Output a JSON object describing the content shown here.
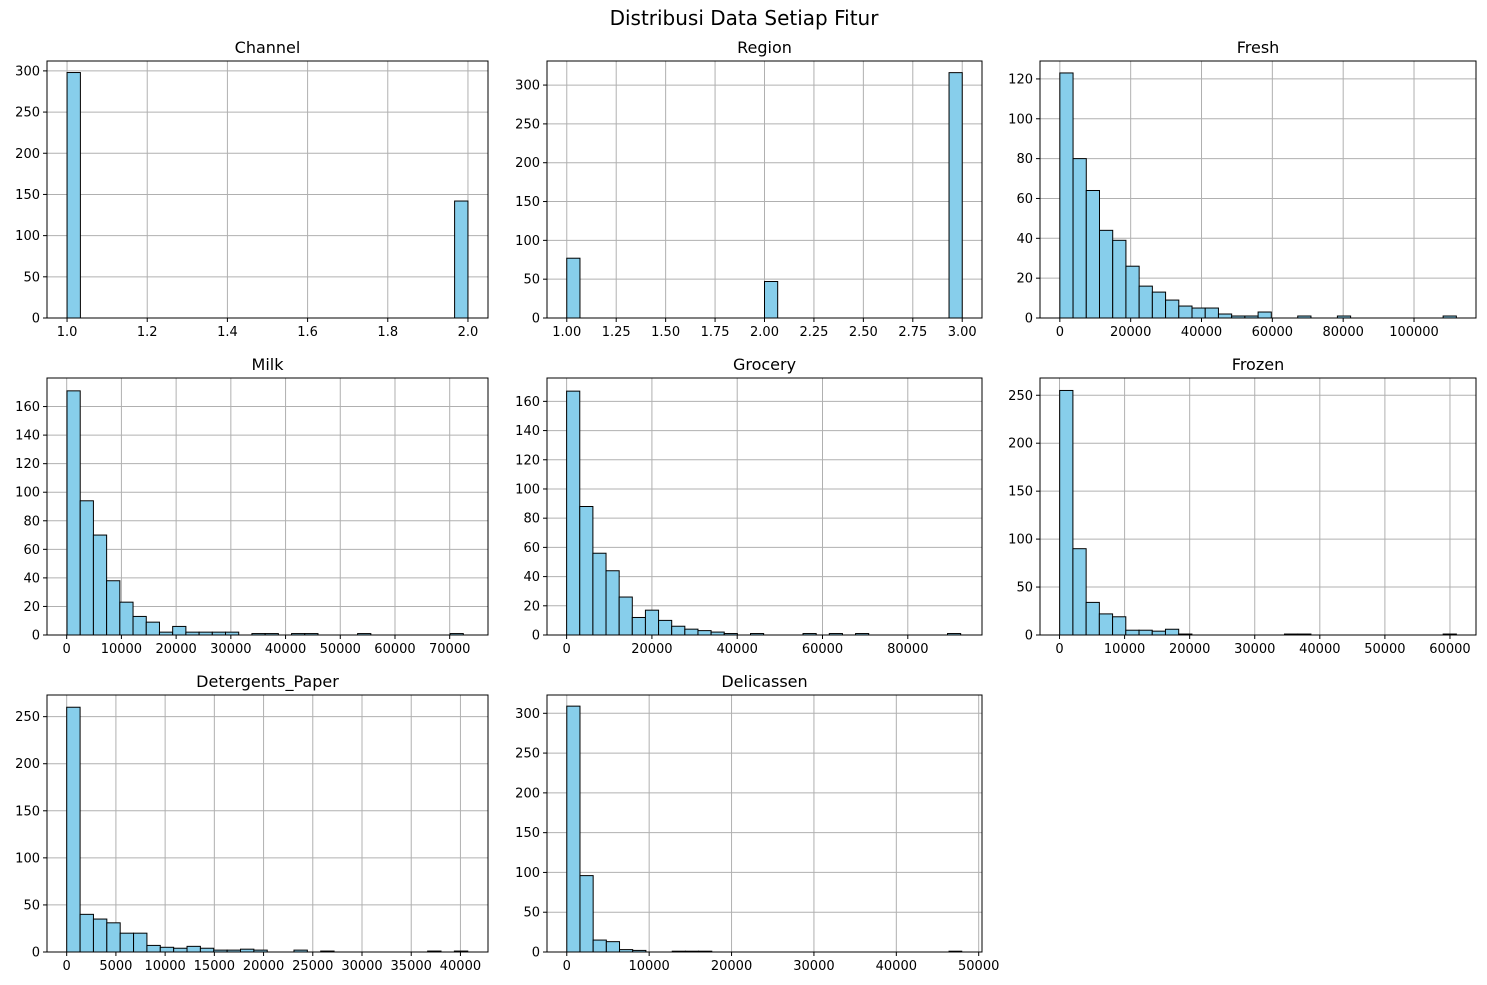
{
  "title": "Distribusi Data Setiap Fitur",
  "colors": {
    "bar_fill": "#87CEEB",
    "bar_edge": "#000000",
    "grid": "#b0b0b0",
    "axes": "#000000"
  },
  "chart_data": [
    {
      "type": "bar",
      "title": "Channel",
      "grid": true,
      "xlim": [
        0.95,
        2.05
      ],
      "ylim": [
        0,
        312
      ],
      "xticks": [
        1.0,
        1.2,
        1.4,
        1.6,
        1.8,
        2.0
      ],
      "xtick_labels": [
        "1.0",
        "1.2",
        "1.4",
        "1.6",
        "1.8",
        "2.0"
      ],
      "yticks": [
        0,
        50,
        100,
        150,
        200,
        250,
        300
      ],
      "ytick_labels": [
        "0",
        "50",
        "100",
        "150",
        "200",
        "250",
        "300"
      ],
      "bin_edges": [
        1.0,
        1.0333,
        1.0667,
        1.1,
        1.1333,
        1.1667,
        1.2,
        1.2333,
        1.2667,
        1.3,
        1.3333,
        1.3667,
        1.4,
        1.4333,
        1.4667,
        1.5,
        1.5333,
        1.5667,
        1.6,
        1.6333,
        1.6667,
        1.7,
        1.7333,
        1.7667,
        1.8,
        1.8333,
        1.8667,
        1.9,
        1.9333,
        1.9667,
        2.0
      ],
      "values": [
        298,
        0,
        0,
        0,
        0,
        0,
        0,
        0,
        0,
        0,
        0,
        0,
        0,
        0,
        0,
        0,
        0,
        0,
        0,
        0,
        0,
        0,
        0,
        0,
        0,
        0,
        0,
        0,
        0,
        142
      ]
    },
    {
      "type": "bar",
      "title": "Region",
      "grid": true,
      "xlim": [
        0.9,
        3.1
      ],
      "ylim": [
        0,
        331
      ],
      "xticks": [
        1.0,
        1.25,
        1.5,
        1.75,
        2.0,
        2.25,
        2.5,
        2.75,
        3.0
      ],
      "xtick_labels": [
        "1.00",
        "1.25",
        "1.50",
        "1.75",
        "2.00",
        "2.25",
        "2.50",
        "2.75",
        "3.00"
      ],
      "yticks": [
        0,
        50,
        100,
        150,
        200,
        250,
        300
      ],
      "ytick_labels": [
        "0",
        "50",
        "100",
        "150",
        "200",
        "250",
        "300"
      ],
      "bin_edges": [
        1.0,
        1.0667,
        1.1333,
        1.2,
        1.2667,
        1.3333,
        1.4,
        1.4667,
        1.5333,
        1.6,
        1.6667,
        1.7333,
        1.8,
        1.8667,
        1.9333,
        2.0,
        2.0667,
        2.1333,
        2.2,
        2.2667,
        2.3333,
        2.4,
        2.4667,
        2.5333,
        2.6,
        2.6667,
        2.7333,
        2.8,
        2.8667,
        2.9333,
        3.0
      ],
      "values": [
        77,
        0,
        0,
        0,
        0,
        0,
        0,
        0,
        0,
        0,
        0,
        0,
        0,
        0,
        0,
        47,
        0,
        0,
        0,
        0,
        0,
        0,
        0,
        0,
        0,
        0,
        0,
        0,
        0,
        316
      ]
    },
    {
      "type": "bar",
      "title": "Fresh",
      "grid": true,
      "xlim": [
        -5600,
        117500
      ],
      "ylim": [
        0,
        129
      ],
      "xticks": [
        0,
        20000,
        40000,
        60000,
        80000,
        100000
      ],
      "xtick_labels": [
        "0",
        "20000",
        "40000",
        "60000",
        "80000",
        "100000"
      ],
      "yticks": [
        0,
        20,
        40,
        60,
        80,
        100,
        120
      ],
      "ytick_labels": [
        "0",
        "20",
        "40",
        "60",
        "80",
        "100",
        "120"
      ],
      "bin_edges": [
        3,
        3734.6,
        7466.2,
        11197.8,
        14929.4,
        18661,
        22392.6,
        26124.2,
        29855.8,
        33587.4,
        37319,
        41050.6,
        44782.2,
        48513.8,
        52245.4,
        55977,
        59708.6,
        63440.2,
        67171.8,
        70903.4,
        74635,
        78366.6,
        82098.2,
        85829.8,
        89561.4,
        93293,
        97024.6,
        100756.2,
        104487.8,
        108219.4,
        111951
      ],
      "values": [
        123,
        80,
        64,
        44,
        39,
        26,
        16,
        13,
        9,
        6,
        5,
        5,
        2,
        1,
        1,
        3,
        0,
        0,
        1,
        0,
        0,
        1,
        0,
        0,
        0,
        0,
        0,
        0,
        0,
        1
      ]
    },
    {
      "type": "bar",
      "title": "Milk",
      "grid": true,
      "xlim": [
        -3600,
        77000
      ],
      "ylim": [
        0,
        180
      ],
      "xticks": [
        0,
        10000,
        20000,
        30000,
        40000,
        50000,
        60000,
        70000
      ],
      "xtick_labels": [
        "0",
        "10000",
        "20000",
        "30000",
        "40000",
        "50000",
        "60000",
        "70000"
      ],
      "yticks": [
        0,
        20,
        40,
        60,
        80,
        100,
        120,
        140,
        160
      ],
      "ytick_labels": [
        "0",
        "20",
        "40",
        "60",
        "80",
        "100",
        "120",
        "140",
        "160"
      ],
      "bin_edges": [
        55,
        2469.3,
        4883.6,
        7297.9,
        9712.2,
        12126.5,
        14540.8,
        16955.1,
        19369.4,
        21783.7,
        24198,
        26612.3,
        29026.6,
        31440.9,
        33855.2,
        36269.5,
        38683.8,
        41098.1,
        43512.4,
        45926.7,
        48341,
        50755.3,
        53169.6,
        55583.9,
        57998.2,
        60412.5,
        62826.8,
        65241.1,
        67655.4,
        70069.7,
        72484
      ],
      "values": [
        171,
        94,
        70,
        38,
        23,
        13,
        9,
        2,
        6,
        2,
        2,
        2,
        2,
        0,
        1,
        1,
        0,
        1,
        1,
        0,
        0,
        0,
        1,
        0,
        0,
        0,
        0,
        0,
        0,
        1
      ]
    },
    {
      "type": "bar",
      "title": "Grocery",
      "grid": true,
      "xlim": [
        -4600,
        97400
      ],
      "ylim": [
        0,
        176
      ],
      "xticks": [
        0,
        20000,
        40000,
        60000,
        80000
      ],
      "xtick_labels": [
        "0",
        "20000",
        "40000",
        "60000",
        "80000"
      ],
      "yticks": [
        0,
        20,
        40,
        60,
        80,
        100,
        120,
        140,
        160
      ],
      "ytick_labels": [
        "0",
        "20",
        "40",
        "60",
        "80",
        "100",
        "120",
        "140",
        "160"
      ],
      "bin_edges": [
        3,
        3082.7,
        6162.4,
        9242.1,
        12321.8,
        15401.5,
        18481.2,
        21560.9,
        24640.6,
        27720.3,
        30800,
        33879.7,
        36959.4,
        40039.1,
        43118.8,
        46198.5,
        49278.2,
        52357.9,
        55437.6,
        58517.3,
        61597,
        64676.7,
        67756.4,
        70836.1,
        73915.8,
        76995.5,
        80075.2,
        83154.9,
        86234.6,
        89314.3,
        92394
      ],
      "values": [
        167,
        88,
        56,
        44,
        26,
        12,
        17,
        10,
        6,
        4,
        3,
        2,
        1,
        0,
        1,
        0,
        0,
        0,
        1,
        0,
        1,
        0,
        1,
        0,
        0,
        0,
        0,
        0,
        0,
        1
      ]
    },
    {
      "type": "bar",
      "title": "Frozen",
      "grid": true,
      "xlim": [
        -3000,
        64000
      ],
      "ylim": [
        0,
        268
      ],
      "xticks": [
        0,
        10000,
        20000,
        30000,
        40000,
        50000,
        60000
      ],
      "xtick_labels": [
        "0",
        "10000",
        "20000",
        "30000",
        "40000",
        "50000",
        "60000"
      ],
      "yticks": [
        0,
        50,
        100,
        150,
        200,
        250
      ],
      "ytick_labels": [
        "0",
        "50",
        "100",
        "150",
        "200",
        "250"
      ],
      "bin_edges": [
        25,
        2057,
        4089,
        6121,
        8153,
        10185,
        12217,
        14249,
        16281,
        18313,
        20345,
        22377,
        24409,
        26441,
        28473,
        30505,
        32537,
        34569,
        36601,
        38633,
        40665,
        42697,
        44729,
        46761,
        48793,
        50825,
        52857,
        54889,
        56921,
        58953,
        60985
      ],
      "values": [
        255,
        90,
        34,
        22,
        19,
        5,
        5,
        4,
        6,
        1,
        0,
        0,
        0,
        0,
        0,
        0,
        0,
        1,
        1,
        0,
        0,
        0,
        0,
        0,
        0,
        0,
        0,
        0,
        0,
        1
      ]
    },
    {
      "type": "bar",
      "title": "Detergents_Paper",
      "grid": true,
      "xlim": [
        -2000,
        42800
      ],
      "ylim": [
        0,
        273
      ],
      "xticks": [
        0,
        5000,
        10000,
        15000,
        20000,
        25000,
        30000,
        35000,
        40000
      ],
      "xtick_labels": [
        "0",
        "5000",
        "10000",
        "15000",
        "20000",
        "25000",
        "30000",
        "35000",
        "40000"
      ],
      "yticks": [
        0,
        50,
        100,
        150,
        200,
        250
      ],
      "ytick_labels": [
        "0",
        "50",
        "100",
        "150",
        "200",
        "250"
      ],
      "bin_edges": [
        3,
        1361,
        2719,
        4077,
        5435,
        6793,
        8151,
        9509,
        10867,
        12225,
        13583,
        14941,
        16299,
        17657,
        19015,
        20373,
        21731,
        23089,
        24447,
        25805,
        27163,
        28521,
        29879,
        31237,
        32595,
        33953,
        35311,
        36669,
        38027,
        39385,
        40743
      ],
      "values": [
        260,
        40,
        35,
        31,
        20,
        20,
        7,
        5,
        4,
        6,
        4,
        2,
        2,
        3,
        2,
        0,
        0,
        2,
        0,
        1,
        0,
        0,
        0,
        0,
        0,
        0,
        0,
        1,
        0,
        1
      ]
    },
    {
      "type": "bar",
      "title": "Delicassen",
      "grid": true,
      "xlim": [
        -2400,
        50400
      ],
      "ylim": [
        0,
        323
      ],
      "xticks": [
        0,
        10000,
        20000,
        30000,
        40000,
        50000
      ],
      "xtick_labels": [
        "0",
        "10000",
        "20000",
        "30000",
        "40000",
        "50000"
      ],
      "yticks": [
        0,
        50,
        100,
        150,
        200,
        250,
        300
      ],
      "ytick_labels": [
        "0",
        "50",
        "100",
        "150",
        "200",
        "250",
        "300"
      ],
      "bin_edges": [
        3,
        1602.9,
        3202.8,
        4802.7,
        6402.6,
        8002.5,
        9602.4,
        11202.3,
        12802.2,
        14402.1,
        16002,
        17601.9,
        19201.8,
        20801.7,
        22401.6,
        24001.5,
        25601.4,
        27201.3,
        28801.2,
        30401.1,
        32001,
        33600.9,
        35200.8,
        36800.7,
        38400.6,
        40000.5,
        41600.4,
        43200.3,
        44800.2,
        46400.1,
        47943
      ],
      "values": [
        309,
        96,
        15,
        13,
        3,
        2,
        0,
        0,
        1,
        1,
        1,
        0,
        0,
        0,
        0,
        0,
        0,
        0,
        0,
        0,
        0,
        0,
        0,
        0,
        0,
        0,
        0,
        0,
        0,
        1
      ]
    }
  ]
}
